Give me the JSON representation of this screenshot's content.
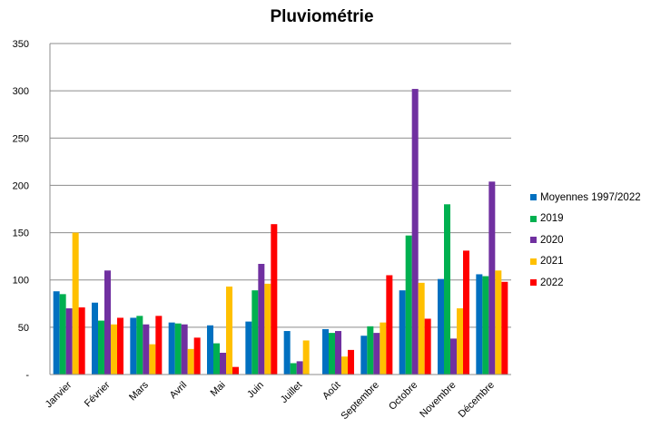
{
  "chart_data": {
    "type": "bar",
    "title": "Pluviométrie",
    "xlabel": "",
    "ylabel": "",
    "ylim": [
      0,
      350
    ],
    "yticks": [
      "-",
      "50",
      "100",
      "150",
      "200",
      "250",
      "300",
      "350"
    ],
    "grid": true,
    "legend_position": "right",
    "categories": [
      "Janvier",
      "Février",
      "Mars",
      "Avril",
      "Mai",
      "Juin",
      "Juillet",
      "Août",
      "Septembre",
      "Octobre",
      "Novembre",
      "Décembre"
    ],
    "series": [
      {
        "name": "Moyennes 1997/2022",
        "color": "#0070C0",
        "values": [
          88,
          76,
          60,
          55,
          52,
          56,
          46,
          48,
          41,
          89,
          101,
          106
        ]
      },
      {
        "name": "2019",
        "color": "#00B050",
        "values": [
          85,
          57,
          62,
          54,
          33,
          89,
          12,
          44,
          51,
          147,
          180,
          104
        ]
      },
      {
        "name": "2020",
        "color": "#7030A0",
        "values": [
          70,
          110,
          53,
          53,
          23,
          117,
          14,
          46,
          44,
          302,
          38,
          204
        ]
      },
      {
        "name": "2021",
        "color": "#FFC000",
        "values": [
          150,
          53,
          32,
          27,
          93,
          96,
          36,
          19,
          55,
          97,
          70,
          110
        ]
      },
      {
        "name": "2022",
        "color": "#FF0000",
        "values": [
          71,
          60,
          62,
          39,
          8,
          159,
          0,
          26,
          105,
          59,
          131,
          98
        ]
      }
    ]
  }
}
